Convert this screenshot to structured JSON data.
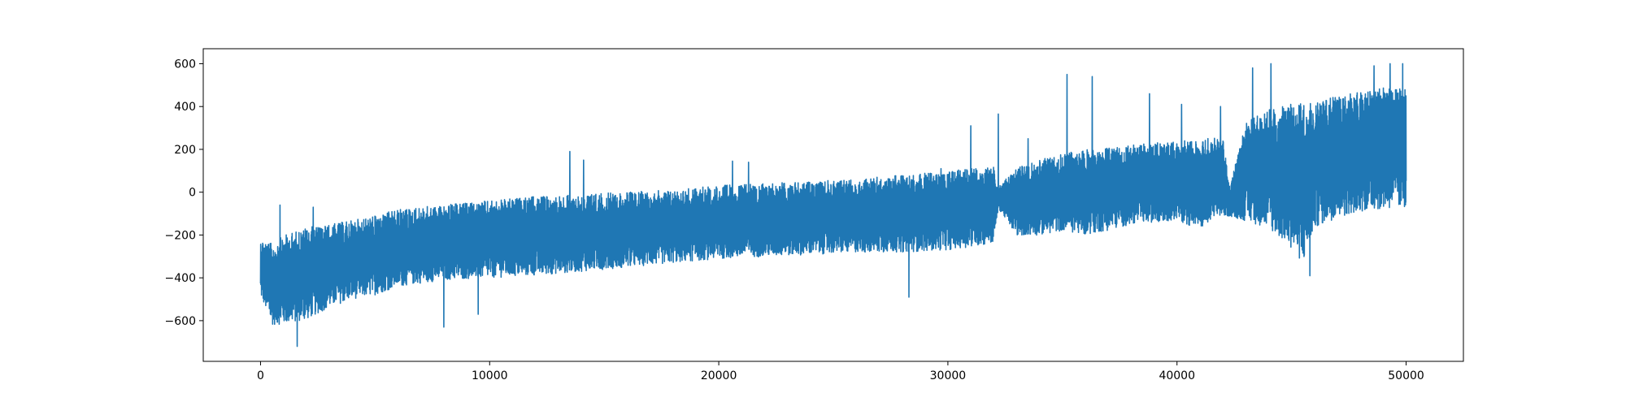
{
  "chart_data": {
    "type": "line",
    "title": "",
    "xlabel": "",
    "ylabel": "",
    "xlim": [
      -2500,
      52500
    ],
    "ylim": [
      -790,
      670
    ],
    "grid": false,
    "legend": "none",
    "x_ticks": [
      0,
      10000,
      20000,
      30000,
      40000,
      50000
    ],
    "x_tick_labels": [
      "0",
      "10000",
      "20000",
      "30000",
      "40000",
      "50000"
    ],
    "y_ticks": [
      -600,
      -400,
      -200,
      0,
      200,
      400,
      600
    ],
    "y_tick_labels": [
      "−600",
      "−400",
      "−200",
      "0",
      "200",
      "400",
      "600"
    ],
    "series": [
      {
        "color": "#1f77b4",
        "x_range": [
          0,
          50000
        ],
        "envelope_x": [
          0,
          500,
          1000,
          2000,
          3000,
          4000,
          5000,
          6000,
          8000,
          10000,
          12000,
          14000,
          16000,
          18000,
          20000,
          22000,
          24000,
          26000,
          28000,
          30000,
          32000,
          32200,
          33000,
          34000,
          35000,
          36000,
          37000,
          38000,
          39000,
          40000,
          41000,
          42000,
          42300,
          43000,
          44000,
          45000,
          45500,
          46000,
          47000,
          48000,
          49000,
          50000
        ],
        "envelope_low": [
          -500,
          -640,
          -640,
          -620,
          -560,
          -520,
          -500,
          -460,
          -430,
          -420,
          -410,
          -390,
          -370,
          -350,
          -330,
          -320,
          -310,
          -300,
          -300,
          -290,
          -260,
          -80,
          -220,
          -220,
          -200,
          -220,
          -200,
          -170,
          -160,
          -150,
          -200,
          -130,
          -120,
          -160,
          -200,
          -300,
          -380,
          -200,
          -150,
          -120,
          -110,
          -110
        ],
        "envelope_high": [
          -200,
          -220,
          -180,
          -140,
          -130,
          -110,
          -90,
          -60,
          -40,
          -20,
          0,
          10,
          20,
          30,
          50,
          60,
          70,
          80,
          100,
          120,
          140,
          30,
          130,
          170,
          200,
          220,
          230,
          240,
          250,
          260,
          270,
          280,
          30,
          350,
          420,
          450,
          460,
          470,
          480,
          500,
          520,
          520
        ],
        "spikes": [
          {
            "x": 850,
            "y": -60
          },
          {
            "x": 2300,
            "y": -70
          },
          {
            "x": 1600,
            "y": -720
          },
          {
            "x": 8000,
            "y": -630
          },
          {
            "x": 9500,
            "y": -570
          },
          {
            "x": 13500,
            "y": 190
          },
          {
            "x": 14100,
            "y": 150
          },
          {
            "x": 20600,
            "y": 145
          },
          {
            "x": 21300,
            "y": 140
          },
          {
            "x": 28300,
            "y": -490
          },
          {
            "x": 29700,
            "y": 110
          },
          {
            "x": 31000,
            "y": 310
          },
          {
            "x": 32200,
            "y": 365
          },
          {
            "x": 33500,
            "y": 250
          },
          {
            "x": 35200,
            "y": 550
          },
          {
            "x": 36300,
            "y": 540
          },
          {
            "x": 38800,
            "y": 460
          },
          {
            "x": 40200,
            "y": 410
          },
          {
            "x": 41900,
            "y": 400
          },
          {
            "x": 43300,
            "y": 580
          },
          {
            "x": 44100,
            "y": 600
          },
          {
            "x": 45800,
            "y": -390
          },
          {
            "x": 48600,
            "y": 590
          },
          {
            "x": 49300,
            "y": 600
          },
          {
            "x": 49850,
            "y": 600
          }
        ]
      }
    ]
  }
}
